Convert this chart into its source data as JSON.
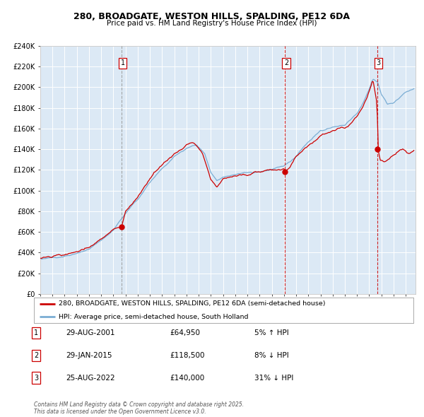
{
  "title_line1": "280, BROADGATE, WESTON HILLS, SPALDING, PE12 6DA",
  "title_line2": "Price paid vs. HM Land Registry's House Price Index (HPI)",
  "fig_bg_color": "#ffffff",
  "plot_bg_color": "#dce9f5",
  "red_line_color": "#cc0000",
  "blue_line_color": "#7aadd4",
  "grid_color": "#ffffff",
  "purchase_year_nums": [
    2001.664,
    2015.08,
    2022.647
  ],
  "purchase_prices": [
    64950,
    118500,
    140000
  ],
  "purchase_labels": [
    "1",
    "2",
    "3"
  ],
  "legend_line1": "280, BROADGATE, WESTON HILLS, SPALDING, PE12 6DA (semi-detached house)",
  "legend_line2": "HPI: Average price, semi-detached house, South Holland",
  "table_entries": [
    {
      "num": "1",
      "date": "29-AUG-2001",
      "price": "£64,950",
      "hpi": "5% ↑ HPI"
    },
    {
      "num": "2",
      "date": "29-JAN-2015",
      "price": "£118,500",
      "hpi": "8% ↓ HPI"
    },
    {
      "num": "3",
      "date": "25-AUG-2022",
      "price": "£140,000",
      "hpi": "31% ↓ HPI"
    }
  ],
  "footer": "Contains HM Land Registry data © Crown copyright and database right 2025.\nThis data is licensed under the Open Government Licence v3.0.",
  "ylim": [
    0,
    240000
  ],
  "ytick_step": 20000,
  "xlim_start": 1995.0,
  "xlim_end": 2025.8,
  "hpi_anchors_x": [
    1995.0,
    1996.0,
    1997.0,
    1998.0,
    1999.0,
    2000.0,
    2001.0,
    2002.0,
    2003.0,
    2004.0,
    2005.0,
    2006.0,
    2007.0,
    2007.8,
    2008.5,
    2009.0,
    2009.5,
    2010.0,
    2011.0,
    2012.0,
    2013.0,
    2014.0,
    2015.0,
    2016.0,
    2017.0,
    2018.0,
    2019.0,
    2020.0,
    2021.0,
    2021.5,
    2022.0,
    2022.3,
    2022.7,
    2023.0,
    2023.5,
    2024.0,
    2024.5,
    2025.0,
    2025.8
  ],
  "hpi_anchors_y": [
    34000,
    35500,
    37500,
    39500,
    43000,
    52000,
    62000,
    78000,
    92000,
    108000,
    122000,
    133000,
    141000,
    145000,
    136000,
    118000,
    110000,
    113000,
    115000,
    117000,
    119000,
    121000,
    124000,
    134000,
    147000,
    158000,
    161000,
    163000,
    175000,
    185000,
    198000,
    208000,
    205000,
    193000,
    183000,
    185000,
    190000,
    195000,
    200000
  ],
  "prop_anchors_x": [
    1995.0,
    1996.0,
    1997.0,
    1998.0,
    1999.0,
    2000.0,
    2001.0,
    2001.664,
    2002.0,
    2003.0,
    2004.0,
    2005.0,
    2006.0,
    2007.0,
    2007.6,
    2008.3,
    2009.0,
    2009.5,
    2010.0,
    2011.0,
    2012.0,
    2013.0,
    2014.0,
    2015.0,
    2015.08,
    2015.5,
    2016.0,
    2017.0,
    2018.0,
    2019.0,
    2020.0,
    2021.0,
    2021.5,
    2022.0,
    2022.3,
    2022.647,
    2022.72,
    2022.9,
    2023.3,
    2023.8,
    2024.3,
    2024.8,
    2025.3,
    2025.8
  ],
  "prop_anchors_y": [
    35000,
    36500,
    38500,
    41000,
    44500,
    54000,
    63000,
    64950,
    80000,
    95000,
    112000,
    126000,
    136000,
    144000,
    147000,
    137000,
    112000,
    104000,
    112000,
    114000,
    116000,
    118000,
    120000,
    122000,
    118500,
    123000,
    132000,
    143000,
    153000,
    158000,
    160000,
    172000,
    182000,
    196000,
    206000,
    183000,
    140000,
    128000,
    127000,
    133000,
    138000,
    140000,
    137000,
    140000
  ]
}
